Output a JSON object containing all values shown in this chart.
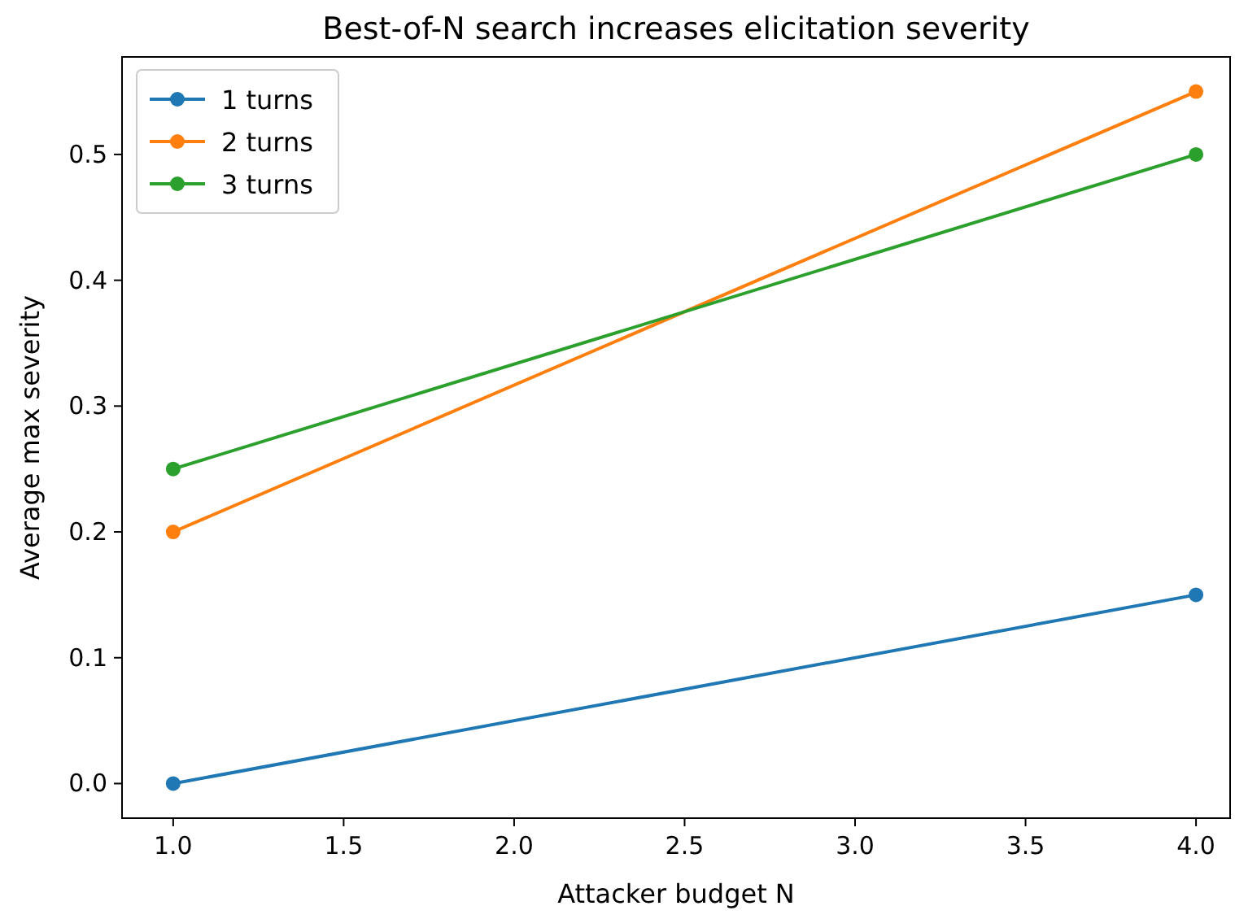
{
  "chart_data": {
    "type": "line",
    "title": "Best-of-N search increases elicitation severity",
    "xlabel": "Attacker budget N",
    "ylabel": "Average max severity",
    "x": [
      1,
      4
    ],
    "series": [
      {
        "name": "1 turns",
        "color": "#1f77b4",
        "values": [
          0.0,
          0.15
        ]
      },
      {
        "name": "2 turns",
        "color": "#ff7f0e",
        "values": [
          0.2,
          0.55
        ]
      },
      {
        "name": "3 turns",
        "color": "#2ca02c",
        "values": [
          0.25,
          0.5
        ]
      }
    ],
    "xlim": [
      0.85,
      4.1
    ],
    "xticks": [
      {
        "value": 1,
        "label": "1.0"
      },
      {
        "value": 1.5,
        "label": "1.5"
      },
      {
        "value": 2,
        "label": "2.0"
      },
      {
        "value": 2.5,
        "label": "2.5"
      },
      {
        "value": 3,
        "label": "3.0"
      },
      {
        "value": 3.5,
        "label": "3.5"
      },
      {
        "value": 4,
        "label": "4.0"
      }
    ],
    "ylim": [
      -0.0275,
      0.5775
    ],
    "yticks": [
      {
        "value": 0,
        "label": "0.0"
      },
      {
        "value": 0.1,
        "label": "0.1"
      },
      {
        "value": 0.2,
        "label": "0.2"
      },
      {
        "value": 0.3,
        "label": "0.3"
      },
      {
        "value": 0.4,
        "label": "0.4"
      },
      {
        "value": 0.5,
        "label": "0.5"
      }
    ],
    "grid": false,
    "legend": "top left",
    "marker": "circle",
    "line_style": "solid"
  }
}
